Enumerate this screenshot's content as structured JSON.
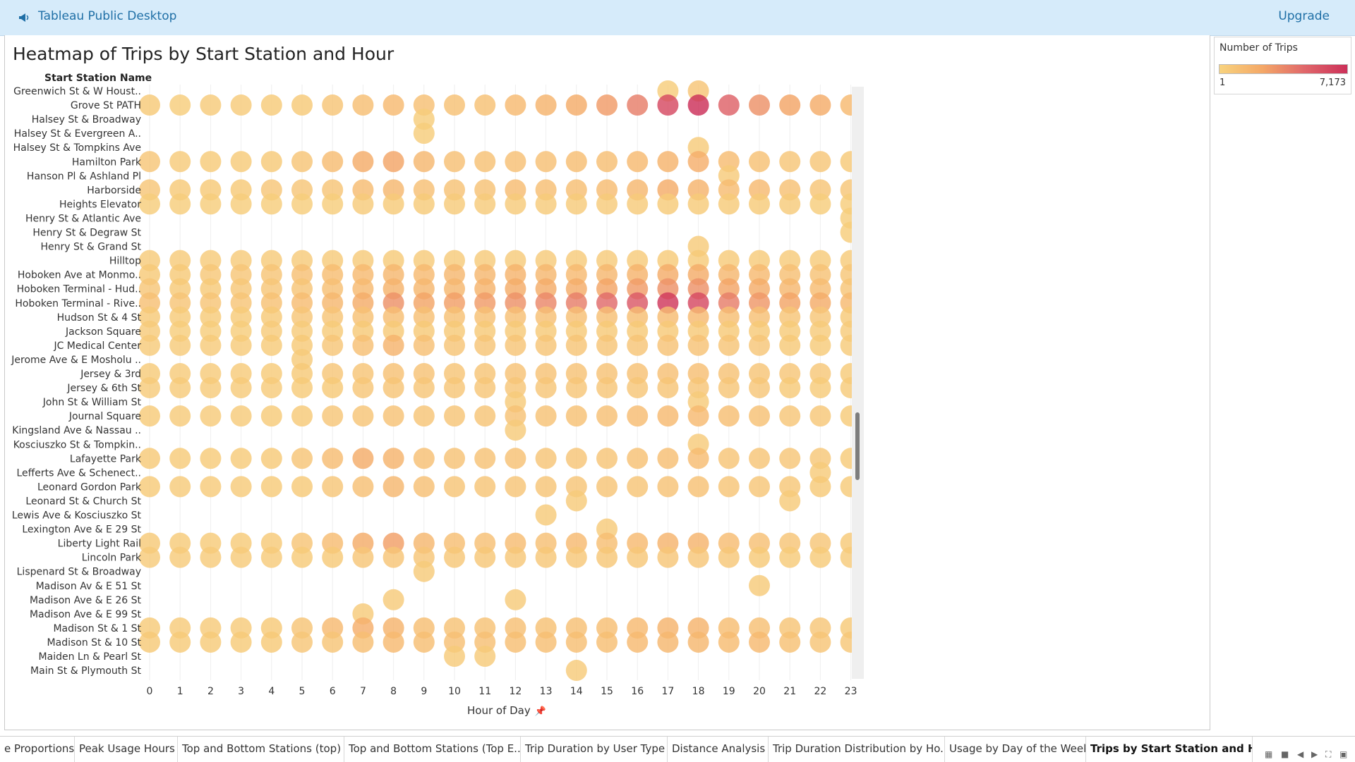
{
  "app": {
    "title": "Tableau Public Desktop",
    "upgrade": "Upgrade"
  },
  "viz": {
    "title": "Heatmap of Trips by Start Station and Hour",
    "row_header": "Start Station Name",
    "x_axis_title": "Hour of Day"
  },
  "legend": {
    "title": "Number of Trips",
    "min_label": "1",
    "max_label": "7,173",
    "colors": [
      "#f8d37e",
      "#f4a867",
      "#e0676a",
      "#cc3059"
    ]
  },
  "tabs": [
    {
      "label": "e Proportions"
    },
    {
      "label": "Peak Usage Hours"
    },
    {
      "label": "Top and Bottom Stations (top)"
    },
    {
      "label": "Top and Bottom Stations (Top E..."
    },
    {
      "label": "Trip Duration by User Type"
    },
    {
      "label": "Distance Analysis"
    },
    {
      "label": "Trip Duration Distribution by Ho..."
    },
    {
      "label": "Usage by Day of the Week"
    },
    {
      "label": "Trips by Start Station and Hour",
      "active": true
    }
  ],
  "chart_data": {
    "type": "heatmap",
    "title": "Heatmap of Trips by Start Station and Hour",
    "xlabel": "Hour of Day",
    "ylabel": "Start Station Name",
    "x": [
      0,
      1,
      2,
      3,
      4,
      5,
      6,
      7,
      8,
      9,
      10,
      11,
      12,
      13,
      14,
      15,
      16,
      17,
      18,
      19,
      20,
      21,
      22,
      23
    ],
    "stations": [
      "Greenwich St & W Houst..",
      "Grove St PATH",
      "Halsey St & Broadway",
      "Halsey St & Evergreen A..",
      "Halsey St & Tompkins Ave",
      "Hamilton Park",
      "Hanson Pl & Ashland Pl",
      "Harborside",
      "Heights Elevator",
      "Henry St & Atlantic Ave",
      "Henry St & Degraw St",
      "Henry St & Grand St",
      "Hilltop",
      "Hoboken Ave at Monmo..",
      "Hoboken Terminal - Hud..",
      "Hoboken Terminal - Rive..",
      "Hudson St & 4 St",
      "Jackson Square",
      "JC Medical Center",
      "Jerome Ave & E Mosholu ..",
      "Jersey & 3rd",
      "Jersey & 6th St",
      "John St & William St",
      "Journal Square",
      "Kingsland Ave & Nassau ..",
      "Kosciuszko St & Tompkin..",
      "Lafayette Park",
      "Lefferts Ave & Schenect..",
      "Leonard Gordon Park",
      "Leonard St & Church St",
      "Lewis Ave & Kosciuszko St",
      "Lexington Ave & E 29 St",
      "Liberty Light Rail",
      "Lincoln Park",
      "Lispenard St & Broadway",
      "Madison Av & E 51 St",
      "Madison Ave & E 26 St",
      "Madison Ave & E 99 St",
      "Madison St & 1 St",
      "Madison St & 10 St",
      "Maiden Ln & Pearl St",
      "Main St & Plymouth St"
    ],
    "intensity": [
      [
        0,
        0,
        0,
        0,
        0,
        0,
        0,
        0,
        0,
        0,
        0,
        0,
        0,
        0,
        0,
        0,
        0,
        0.05,
        0.12,
        0,
        0,
        0,
        0,
        0
      ],
      [
        0.08,
        0.05,
        0.06,
        0.06,
        0.07,
        0.08,
        0.12,
        0.16,
        0.2,
        0.15,
        0.14,
        0.14,
        0.2,
        0.25,
        0.3,
        0.4,
        0.55,
        0.85,
        1.0,
        0.7,
        0.45,
        0.35,
        0.3,
        0.2
      ],
      [
        0,
        0,
        0,
        0,
        0,
        0,
        0,
        0,
        0,
        0.05,
        0,
        0,
        0,
        0,
        0,
        0,
        0,
        0,
        0,
        0,
        0,
        0,
        0,
        0
      ],
      [
        0,
        0,
        0,
        0,
        0,
        0,
        0,
        0,
        0,
        0.05,
        0,
        0,
        0,
        0,
        0,
        0,
        0,
        0,
        0,
        0,
        0,
        0,
        0,
        0
      ],
      [
        0,
        0,
        0,
        0,
        0,
        0,
        0,
        0,
        0,
        0,
        0,
        0,
        0,
        0,
        0,
        0,
        0,
        0,
        0.06,
        0,
        0,
        0,
        0,
        0
      ],
      [
        0.1,
        0.06,
        0.07,
        0.07,
        0.08,
        0.12,
        0.18,
        0.3,
        0.35,
        0.22,
        0.15,
        0.14,
        0.15,
        0.15,
        0.17,
        0.16,
        0.2,
        0.25,
        0.28,
        0.18,
        0.14,
        0.1,
        0.1,
        0.08
      ],
      [
        0,
        0,
        0,
        0,
        0,
        0,
        0,
        0,
        0,
        0,
        0,
        0,
        0,
        0,
        0,
        0,
        0,
        0,
        0,
        0.06,
        0,
        0,
        0,
        0
      ],
      [
        0.1,
        0.08,
        0.08,
        0.08,
        0.1,
        0.1,
        0.12,
        0.18,
        0.22,
        0.15,
        0.13,
        0.13,
        0.18,
        0.16,
        0.16,
        0.18,
        0.22,
        0.3,
        0.25,
        0.18,
        0.2,
        0.14,
        0.12,
        0.1
      ],
      [
        0.05,
        0.05,
        0.05,
        0.05,
        0.05,
        0.05,
        0.05,
        0.06,
        0.07,
        0.07,
        0.06,
        0.06,
        0.06,
        0.06,
        0.06,
        0.06,
        0.06,
        0.07,
        0.07,
        0.07,
        0.07,
        0.06,
        0.05,
        0.05
      ],
      [
        0,
        0,
        0,
        0,
        0,
        0,
        0,
        0,
        0,
        0,
        0,
        0,
        0,
        0,
        0,
        0,
        0,
        0,
        0,
        0,
        0,
        0,
        0,
        0.05
      ],
      [
        0,
        0,
        0,
        0,
        0,
        0,
        0,
        0,
        0,
        0,
        0,
        0,
        0,
        0,
        0,
        0,
        0,
        0,
        0,
        0,
        0,
        0,
        0,
        0.05
      ],
      [
        0,
        0,
        0,
        0,
        0,
        0,
        0,
        0,
        0,
        0,
        0,
        0,
        0,
        0,
        0,
        0,
        0,
        0,
        0.06,
        0,
        0,
        0,
        0,
        0
      ],
      [
        0.06,
        0.06,
        0.06,
        0.06,
        0.06,
        0.06,
        0.06,
        0.06,
        0.07,
        0.06,
        0.06,
        0.06,
        0.06,
        0.06,
        0.06,
        0.06,
        0.06,
        0.07,
        0.07,
        0.06,
        0.06,
        0.06,
        0.06,
        0.06
      ],
      [
        0.08,
        0.08,
        0.09,
        0.1,
        0.12,
        0.15,
        0.17,
        0.2,
        0.22,
        0.2,
        0.22,
        0.22,
        0.25,
        0.22,
        0.2,
        0.22,
        0.25,
        0.3,
        0.3,
        0.22,
        0.2,
        0.15,
        0.13,
        0.1
      ],
      [
        0.1,
        0.08,
        0.08,
        0.09,
        0.1,
        0.12,
        0.15,
        0.2,
        0.25,
        0.22,
        0.22,
        0.25,
        0.3,
        0.3,
        0.3,
        0.35,
        0.4,
        0.45,
        0.45,
        0.35,
        0.3,
        0.22,
        0.18,
        0.12
      ],
      [
        0.15,
        0.12,
        0.12,
        0.12,
        0.14,
        0.18,
        0.22,
        0.3,
        0.45,
        0.35,
        0.38,
        0.4,
        0.45,
        0.5,
        0.55,
        0.65,
        0.75,
        0.95,
        0.85,
        0.55,
        0.42,
        0.35,
        0.3,
        0.2
      ],
      [
        0.08,
        0.07,
        0.07,
        0.07,
        0.08,
        0.1,
        0.12,
        0.14,
        0.16,
        0.15,
        0.14,
        0.14,
        0.15,
        0.15,
        0.15,
        0.15,
        0.16,
        0.18,
        0.2,
        0.16,
        0.15,
        0.12,
        0.1,
        0.08
      ],
      [
        0.06,
        0.05,
        0.05,
        0.05,
        0.06,
        0.06,
        0.07,
        0.08,
        0.08,
        0.08,
        0.08,
        0.08,
        0.08,
        0.08,
        0.08,
        0.08,
        0.08,
        0.08,
        0.08,
        0.08,
        0.08,
        0.07,
        0.06,
        0.06
      ],
      [
        0.06,
        0.06,
        0.06,
        0.06,
        0.07,
        0.08,
        0.1,
        0.15,
        0.25,
        0.15,
        0.12,
        0.12,
        0.12,
        0.12,
        0.12,
        0.12,
        0.12,
        0.13,
        0.13,
        0.12,
        0.1,
        0.08,
        0.07,
        0.06
      ],
      [
        0,
        0,
        0,
        0,
        0,
        0.06,
        0,
        0,
        0,
        0,
        0,
        0,
        0,
        0,
        0,
        0,
        0,
        0,
        0,
        0,
        0,
        0,
        0,
        0
      ],
      [
        0.07,
        0.06,
        0.06,
        0.06,
        0.07,
        0.08,
        0.1,
        0.12,
        0.14,
        0.13,
        0.12,
        0.12,
        0.13,
        0.13,
        0.13,
        0.13,
        0.14,
        0.15,
        0.16,
        0.13,
        0.12,
        0.1,
        0.09,
        0.07
      ],
      [
        0.06,
        0.06,
        0.06,
        0.06,
        0.06,
        0.07,
        0.08,
        0.1,
        0.12,
        0.1,
        0.1,
        0.1,
        0.1,
        0.1,
        0.1,
        0.1,
        0.1,
        0.12,
        0.12,
        0.1,
        0.1,
        0.08,
        0.07,
        0.06
      ],
      [
        0,
        0,
        0,
        0,
        0,
        0,
        0,
        0,
        0,
        0,
        0,
        0,
        0.06,
        0,
        0,
        0,
        0,
        0,
        0.06,
        0,
        0,
        0,
        0,
        0
      ],
      [
        0.07,
        0.06,
        0.06,
        0.06,
        0.07,
        0.08,
        0.1,
        0.12,
        0.13,
        0.12,
        0.12,
        0.12,
        0.13,
        0.13,
        0.14,
        0.15,
        0.18,
        0.2,
        0.2,
        0.16,
        0.14,
        0.1,
        0.09,
        0.07
      ],
      [
        0,
        0,
        0,
        0,
        0,
        0,
        0,
        0,
        0,
        0,
        0,
        0,
        0.06,
        0,
        0,
        0,
        0,
        0,
        0,
        0,
        0,
        0,
        0,
        0
      ],
      [
        0,
        0,
        0,
        0,
        0,
        0,
        0,
        0,
        0,
        0,
        0,
        0,
        0,
        0,
        0,
        0,
        0,
        0,
        0.06,
        0,
        0,
        0,
        0,
        0
      ],
      [
        0.08,
        0.07,
        0.07,
        0.07,
        0.08,
        0.12,
        0.18,
        0.3,
        0.25,
        0.15,
        0.13,
        0.13,
        0.14,
        0.12,
        0.12,
        0.12,
        0.14,
        0.16,
        0.18,
        0.12,
        0.12,
        0.1,
        0.09,
        0.07
      ],
      [
        0,
        0,
        0,
        0,
        0,
        0,
        0,
        0,
        0,
        0,
        0,
        0,
        0,
        0,
        0,
        0,
        0,
        0,
        0,
        0,
        0,
        0,
        0.06,
        0
      ],
      [
        0.07,
        0.06,
        0.06,
        0.06,
        0.07,
        0.08,
        0.1,
        0.15,
        0.22,
        0.15,
        0.12,
        0.11,
        0.12,
        0.11,
        0.11,
        0.11,
        0.12,
        0.13,
        0.14,
        0.12,
        0.1,
        0.09,
        0.08,
        0.07
      ],
      [
        0,
        0,
        0,
        0,
        0,
        0,
        0,
        0,
        0,
        0,
        0,
        0,
        0,
        0,
        0.06,
        0,
        0,
        0,
        0,
        0,
        0,
        0.06,
        0,
        0
      ],
      [
        0,
        0,
        0,
        0,
        0,
        0,
        0,
        0,
        0,
        0,
        0,
        0,
        0,
        0.06,
        0,
        0,
        0,
        0,
        0,
        0,
        0,
        0,
        0,
        0
      ],
      [
        0,
        0,
        0,
        0,
        0,
        0,
        0,
        0,
        0,
        0,
        0,
        0,
        0,
        0,
        0,
        0.06,
        0,
        0,
        0,
        0,
        0,
        0,
        0,
        0
      ],
      [
        0.08,
        0.07,
        0.07,
        0.07,
        0.08,
        0.12,
        0.18,
        0.3,
        0.38,
        0.22,
        0.16,
        0.15,
        0.18,
        0.15,
        0.2,
        0.16,
        0.2,
        0.25,
        0.25,
        0.18,
        0.15,
        0.12,
        0.1,
        0.08
      ],
      [
        0.06,
        0.06,
        0.06,
        0.06,
        0.06,
        0.07,
        0.08,
        0.1,
        0.12,
        0.1,
        0.09,
        0.09,
        0.09,
        0.09,
        0.09,
        0.09,
        0.09,
        0.1,
        0.1,
        0.09,
        0.08,
        0.07,
        0.07,
        0.06
      ],
      [
        0,
        0,
        0,
        0,
        0,
        0,
        0,
        0,
        0,
        0.06,
        0,
        0,
        0,
        0,
        0,
        0,
        0,
        0,
        0,
        0,
        0,
        0,
        0,
        0
      ],
      [
        0,
        0,
        0,
        0,
        0,
        0,
        0,
        0,
        0,
        0,
        0,
        0,
        0,
        0,
        0,
        0,
        0,
        0,
        0,
        0,
        0.06,
        0,
        0,
        0
      ],
      [
        0,
        0,
        0,
        0,
        0,
        0,
        0,
        0,
        0.06,
        0,
        0,
        0,
        0.06,
        0,
        0,
        0,
        0,
        0,
        0,
        0,
        0,
        0,
        0,
        0
      ],
      [
        0,
        0,
        0,
        0,
        0,
        0,
        0,
        0.06,
        0,
        0,
        0,
        0,
        0,
        0,
        0,
        0,
        0,
        0,
        0,
        0,
        0,
        0,
        0,
        0
      ],
      [
        0.07,
        0.06,
        0.06,
        0.06,
        0.08,
        0.12,
        0.2,
        0.28,
        0.25,
        0.16,
        0.13,
        0.13,
        0.15,
        0.14,
        0.15,
        0.16,
        0.2,
        0.25,
        0.25,
        0.17,
        0.15,
        0.12,
        0.1,
        0.08
      ],
      [
        0.08,
        0.07,
        0.07,
        0.07,
        0.08,
        0.1,
        0.12,
        0.16,
        0.2,
        0.16,
        0.15,
        0.15,
        0.16,
        0.16,
        0.16,
        0.16,
        0.2,
        0.22,
        0.22,
        0.18,
        0.2,
        0.14,
        0.12,
        0.09
      ],
      [
        0,
        0,
        0,
        0,
        0,
        0,
        0,
        0,
        0,
        0,
        0.06,
        0.06,
        0,
        0,
        0,
        0,
        0,
        0,
        0,
        0,
        0,
        0,
        0,
        0
      ],
      [
        0,
        0,
        0,
        0,
        0,
        0,
        0,
        0,
        0,
        0,
        0,
        0,
        0,
        0,
        0.06,
        0,
        0,
        0,
        0,
        0,
        0,
        0,
        0,
        0
      ]
    ]
  }
}
